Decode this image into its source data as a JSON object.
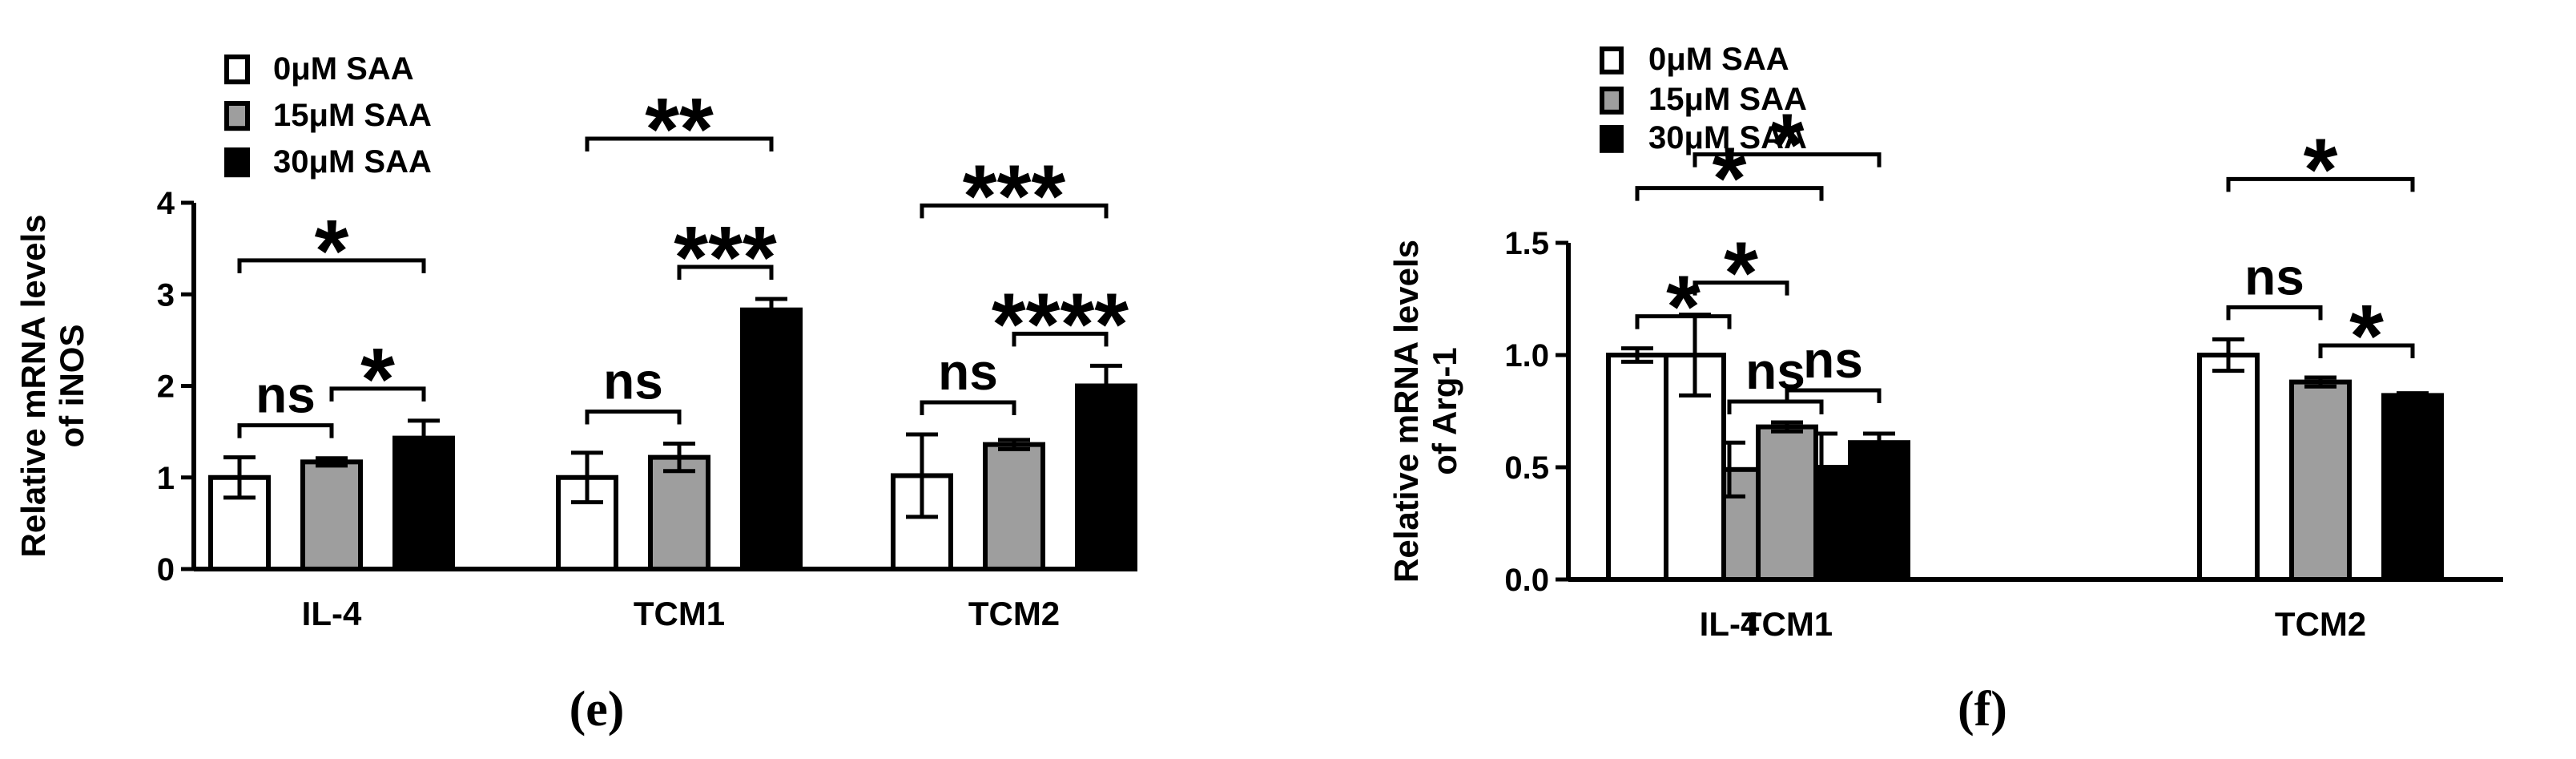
{
  "chart_data": [
    {
      "type": "bar",
      "panel_label": "(e)",
      "ylabel_line1": "Relative  mRNA levels",
      "ylabel_line2": "of iNOS",
      "ylim": [
        0,
        4
      ],
      "yticks": [
        "0",
        "1",
        "2",
        "3",
        "4"
      ],
      "categories": [
        "IL-4",
        "TCM1",
        "TCM2"
      ],
      "legend_position": "top-left",
      "series": [
        {
          "name": "0μM SAA",
          "fill": "#ffffff",
          "values": [
            1.0,
            1.0,
            1.02
          ],
          "errors": [
            0.22,
            0.27,
            0.45
          ]
        },
        {
          "name": "15μM SAA",
          "fill": "#9e9e9e",
          "values": [
            1.17,
            1.22,
            1.36
          ],
          "errors": [
            0.04,
            0.15,
            0.05
          ]
        },
        {
          "name": "30μM SAA",
          "fill": "#000000",
          "values": [
            1.43,
            2.83,
            2.0
          ],
          "errors": [
            0.19,
            0.12,
            0.22
          ]
        }
      ],
      "annotations": [
        {
          "category": 0,
          "from": 0,
          "to": 1,
          "text": "ns"
        },
        {
          "category": 0,
          "from": 1,
          "to": 2,
          "text": "*"
        },
        {
          "category": 0,
          "from": 0,
          "to": 2,
          "text": "*"
        },
        {
          "category": 1,
          "from": 0,
          "to": 1,
          "text": "ns"
        },
        {
          "category": 1,
          "from": 1,
          "to": 2,
          "text": "***"
        },
        {
          "category": 1,
          "from": 0,
          "to": 2,
          "text": "**"
        },
        {
          "category": 2,
          "from": 0,
          "to": 1,
          "text": "ns"
        },
        {
          "category": 2,
          "from": 1,
          "to": 2,
          "text": "****"
        },
        {
          "category": 2,
          "from": 0,
          "to": 2,
          "text": "***"
        }
      ]
    },
    {
      "type": "bar",
      "panel_label": "(f)",
      "ylabel_line1": "Relative  mRNA levels",
      "ylabel_line2": "of Arg-1",
      "ylim": [
        0,
        1.5
      ],
      "yticks": [
        "0.0",
        "0.5",
        "1.0",
        "1.5"
      ],
      "categories": [
        "IL-4",
        "TCM1",
        "TCM2"
      ],
      "legend_position": "top-left",
      "series": [
        {
          "name": "0μM SAA",
          "fill": "#ffffff",
          "values": [
            1.0,
            1.0,
            1.0
          ],
          "errors": [
            0.03,
            0.18,
            0.07
          ]
        },
        {
          "name": "15μM SAA",
          "fill": "#9e9e9e",
          "values": [
            0.49,
            0.68,
            0.88
          ],
          "errors": [
            0.12,
            0.02,
            0.02
          ]
        },
        {
          "name": "30μM SAA",
          "fill": "#000000",
          "values": [
            0.5,
            0.61,
            0.82
          ],
          "errors": [
            0.15,
            0.04,
            0.01
          ]
        }
      ],
      "annotations": [
        {
          "category": 0,
          "from": 0,
          "to": 1,
          "text": "*"
        },
        {
          "category": 0,
          "from": 1,
          "to": 2,
          "text": "ns"
        },
        {
          "category": 0,
          "from": 0,
          "to": 2,
          "text": "*"
        },
        {
          "category": 1,
          "from": 0,
          "to": 1,
          "text": "*"
        },
        {
          "category": 1,
          "from": 1,
          "to": 2,
          "text": "ns"
        },
        {
          "category": 1,
          "from": 0,
          "to": 2,
          "text": "*"
        },
        {
          "category": 2,
          "from": 0,
          "to": 1,
          "text": "ns"
        },
        {
          "category": 2,
          "from": 1,
          "to": 2,
          "text": "*"
        },
        {
          "category": 2,
          "from": 0,
          "to": 2,
          "text": "*"
        }
      ]
    }
  ]
}
